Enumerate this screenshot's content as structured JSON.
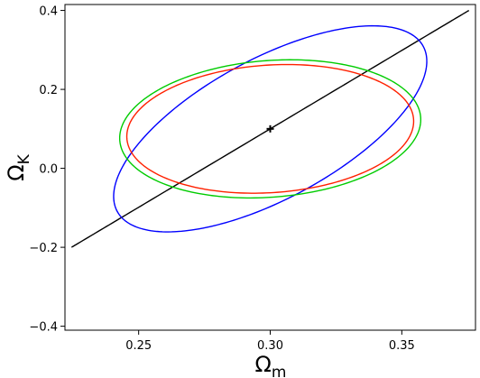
{
  "chart_data": {
    "type": "scatter",
    "title": "",
    "xlabel": "Ω",
    "xlabel_sub": "m",
    "ylabel": "Ω",
    "ylabel_sub": "K",
    "xlim": [
      0.222,
      0.378
    ],
    "ylim": [
      -0.41,
      0.415
    ],
    "xticks": [
      0.25,
      0.3,
      0.35
    ],
    "xtick_labels": [
      "0.25",
      "0.30",
      "0.35"
    ],
    "yticks": [
      -0.4,
      -0.2,
      0.0,
      0.2,
      0.4
    ],
    "ytick_labels": [
      "−0.4",
      "−0.2",
      "0.0",
      "0.2",
      "0.4"
    ],
    "grid": false,
    "fiducial_point": {
      "x": 0.3,
      "y": 0.1
    },
    "series": [
      {
        "color": "#000000",
        "center": [
          0.3,
          0.1
        ],
        "x_half_extent": 0.0755,
        "y_half_extent": 0.3,
        "correlation": 0.0
      },
      {
        "color": "#0000ff",
        "center": [
          0.3,
          0.1
        ],
        "x_half_extent": 0.0595,
        "y_half_extent": 0.261,
        "correlation": -0.755
      },
      {
        "color": "#00cc00",
        "center": [
          0.3,
          0.1
        ],
        "x_half_extent": 0.0572,
        "y_half_extent": 0.175,
        "correlation": -0.991
      },
      {
        "color": "#ff2000",
        "center": [
          0.3,
          0.1
        ],
        "x_half_extent": 0.0545,
        "y_half_extent": 0.163,
        "correlation": -0.993
      }
    ]
  }
}
